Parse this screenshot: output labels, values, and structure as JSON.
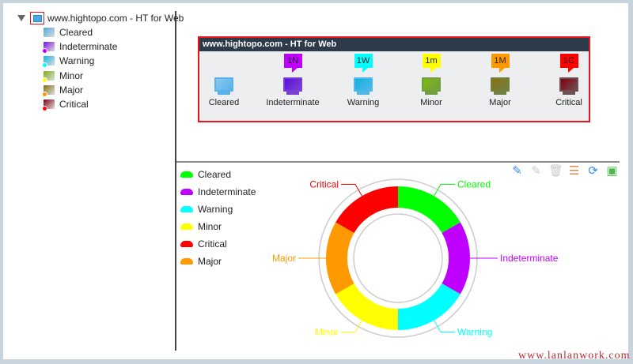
{
  "tree": {
    "root": {
      "label": "www.hightopo.com - HT for Web",
      "icon": "computer-group-icon"
    },
    "items": [
      {
        "label": "Cleared",
        "color": "#4aa8e0",
        "dot": ""
      },
      {
        "label": "Indeterminate",
        "color": "#7a10e0",
        "dot": "#c000ff"
      },
      {
        "label": "Warning",
        "color": "#10b8e0",
        "dot": "#00ffff"
      },
      {
        "label": "Minor",
        "color": "#7ab010",
        "dot": "#ffff00"
      },
      {
        "label": "Major",
        "color": "#807010",
        "dot": "#ff9900"
      },
      {
        "label": "Critical",
        "color": "#800010",
        "dot": "#ff0000"
      }
    ]
  },
  "panel": {
    "title": "www.hightopo.com - HT for Web",
    "nodes": [
      {
        "label": "Cleared",
        "badge": "",
        "badge_color": "",
        "screen": "#8cc8f0",
        "frame": "#5ab0e8"
      },
      {
        "label": "Indeterminate",
        "badge": "1N",
        "badge_color": "#c000ff",
        "screen": "#5a10e0",
        "frame": "#7a40d0"
      },
      {
        "label": "Warning",
        "badge": "1W",
        "badge_color": "#00ffff",
        "screen": "#10b0e0",
        "frame": "#50b8e8"
      },
      {
        "label": "Minor",
        "badge": "1m",
        "badge_color": "#ffff00",
        "screen": "#80b810",
        "frame": "#70a040"
      },
      {
        "label": "Major",
        "badge": "1M",
        "badge_color": "#ff9900",
        "screen": "#8a7010",
        "frame": "#708040"
      },
      {
        "label": "Critical",
        "badge": "1C",
        "badge_color": "#ff0000",
        "screen": "#800010",
        "frame": "#705050"
      }
    ]
  },
  "toolbar": [
    {
      "icon": "pencil-add-icon",
      "color": "#3a8ee8"
    },
    {
      "icon": "pencil-remove-icon",
      "color": "#cccccc"
    },
    {
      "icon": "trash-icon",
      "color": "#cccccc"
    },
    {
      "icon": "document-icon",
      "color": "#e8874a"
    },
    {
      "icon": "refresh-icon",
      "color": "#3a8ee8"
    },
    {
      "icon": "save-icon",
      "color": "#4ab84a"
    }
  ],
  "chart_data": {
    "type": "pie",
    "donut": true,
    "legend": [
      {
        "name": "Cleared",
        "color": "#00ff00"
      },
      {
        "name": "Indeterminate",
        "color": "#c000ff"
      },
      {
        "name": "Warning",
        "color": "#00ffff"
      },
      {
        "name": "Minor",
        "color": "#ffff00"
      },
      {
        "name": "Critical",
        "color": "#ff0000"
      },
      {
        "name": "Major",
        "color": "#ff9900"
      }
    ],
    "legend_position": "top-left",
    "slices": [
      {
        "name": "Cleared",
        "value": 1,
        "color": "#00ff00"
      },
      {
        "name": "Indeterminate",
        "value": 1,
        "color": "#c000ff"
      },
      {
        "name": "Warning",
        "value": 1,
        "color": "#00ffff"
      },
      {
        "name": "Minor",
        "value": 1,
        "color": "#ffff00"
      },
      {
        "name": "Major",
        "value": 1,
        "color": "#ff9900"
      },
      {
        "name": "Critical",
        "value": 1,
        "color": "#ff0000"
      }
    ]
  },
  "watermark": "www.lanlanwork.com"
}
